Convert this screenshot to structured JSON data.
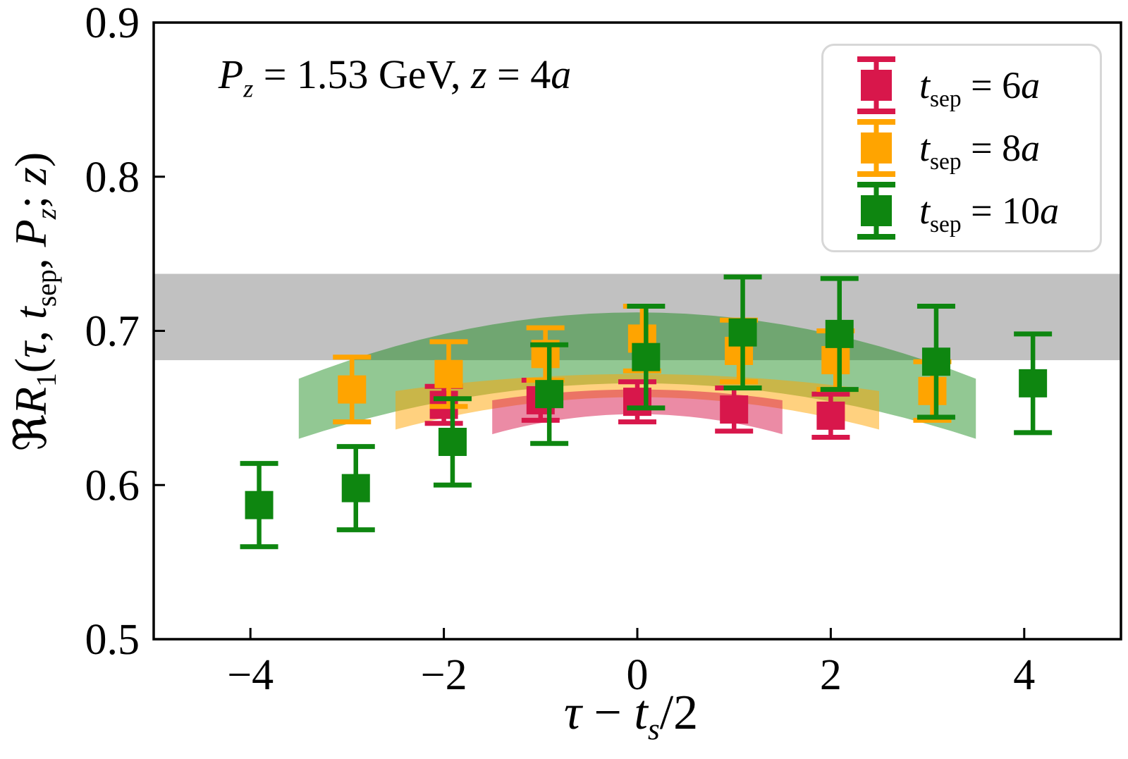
{
  "annotation_parts": {
    "P": "P",
    "Psub": "z",
    "eq1": " = 1.53 GeV, ",
    "z": "z",
    "eq2": " = 4",
    "a": "a"
  },
  "xlabel_parts": {
    "tau": "τ",
    "minus": " − ",
    "t": "t",
    "s": "s",
    "rest": "/2"
  },
  "ylabel_parts": {
    "frak": "ℜ",
    "R": "R",
    "sub1": "1",
    "open": "(",
    "tau": "τ",
    "c1": ", ",
    "t": "t",
    "sep": "sep",
    "c2": ", ",
    "P": "P",
    "zsub": "z",
    "semi": "; ",
    "z": "z",
    "close": ")"
  },
  "legend": {
    "items": [
      {
        "color": "#d8174b",
        "t": "t",
        "sub": "sep",
        "eq": " = ",
        "val": "6",
        "a": "a"
      },
      {
        "color": "#ffa400",
        "t": "t",
        "sub": "sep",
        "eq": " = ",
        "val": "8",
        "a": "a"
      },
      {
        "color": "#0e8610",
        "t": "t",
        "sub": "sep",
        "eq": " = ",
        "val": "10",
        "a": "a"
      }
    ]
  },
  "chart_data": {
    "type": "scatter",
    "title_annotation": "P_z = 1.53 GeV, z = 4a",
    "xlabel": "τ − t_s/2",
    "ylabel": "ℜR_1(τ, t_sep, P_z; z)",
    "xlim": [
      -5,
      5
    ],
    "ylim": [
      0.5,
      0.9
    ],
    "x_ticks": [
      -4,
      -2,
      0,
      2,
      4
    ],
    "x_tick_labels": [
      "−4",
      "−2",
      "0",
      "2",
      "4"
    ],
    "y_ticks": [
      0.5,
      0.6,
      0.7,
      0.8,
      0.9
    ],
    "y_tick_labels": [
      "0.5",
      "0.6",
      "0.7",
      "0.8",
      "0.9"
    ],
    "grid": false,
    "legend_position": "upper right",
    "gray_band": {
      "y_low": 0.681,
      "y_high": 0.737,
      "color": "#c1c1c1"
    },
    "series": [
      {
        "name": "t_sep = 6a",
        "color": "#d8174b",
        "x_offset": 0.0,
        "x": [
          -2,
          -1,
          0,
          1,
          2
        ],
        "y": [
          0.652,
          0.655,
          0.654,
          0.649,
          0.645
        ],
        "yerr": [
          0.012,
          0.013,
          0.013,
          0.014,
          0.014
        ],
        "fit_band": {
          "x_range": [
            -1.5,
            1.5
          ],
          "top": [
            0.662,
            0.007
          ],
          "bottom": [
            0.646,
            0.013
          ],
          "opacity": 0.5
        }
      },
      {
        "name": "t_sep = 8a",
        "color": "#ffa400",
        "x_offset": 0.05,
        "x": [
          -3,
          -2,
          -1,
          0,
          1,
          2,
          3
        ],
        "y": [
          0.662,
          0.672,
          0.685,
          0.695,
          0.687,
          0.681,
          0.661
        ],
        "yerr": [
          0.021,
          0.021,
          0.017,
          0.021,
          0.02,
          0.019,
          0.019
        ],
        "fit_band": {
          "x_range": [
            -2.5,
            2.5
          ],
          "top": [
            0.672,
            0.011
          ],
          "bottom": [
            0.657,
            0.021
          ],
          "opacity": 0.5
        }
      },
      {
        "name": "t_sep = 10a",
        "color": "#0e8610",
        "x_offset": 0.09,
        "x": [
          -4,
          -3,
          -2,
          -1,
          0,
          1,
          2,
          3,
          4
        ],
        "y": [
          0.587,
          0.598,
          0.628,
          0.659,
          0.683,
          0.699,
          0.698,
          0.68,
          0.666
        ],
        "yerr": [
          0.027,
          0.027,
          0.028,
          0.032,
          0.033,
          0.036,
          0.036,
          0.036,
          0.032
        ],
        "fit_band": {
          "x_range": [
            -3.5,
            3.5
          ],
          "top": [
            0.712,
            0.043
          ],
          "bottom": [
            0.666,
            0.036
          ],
          "opacity": 0.45
        }
      }
    ]
  }
}
